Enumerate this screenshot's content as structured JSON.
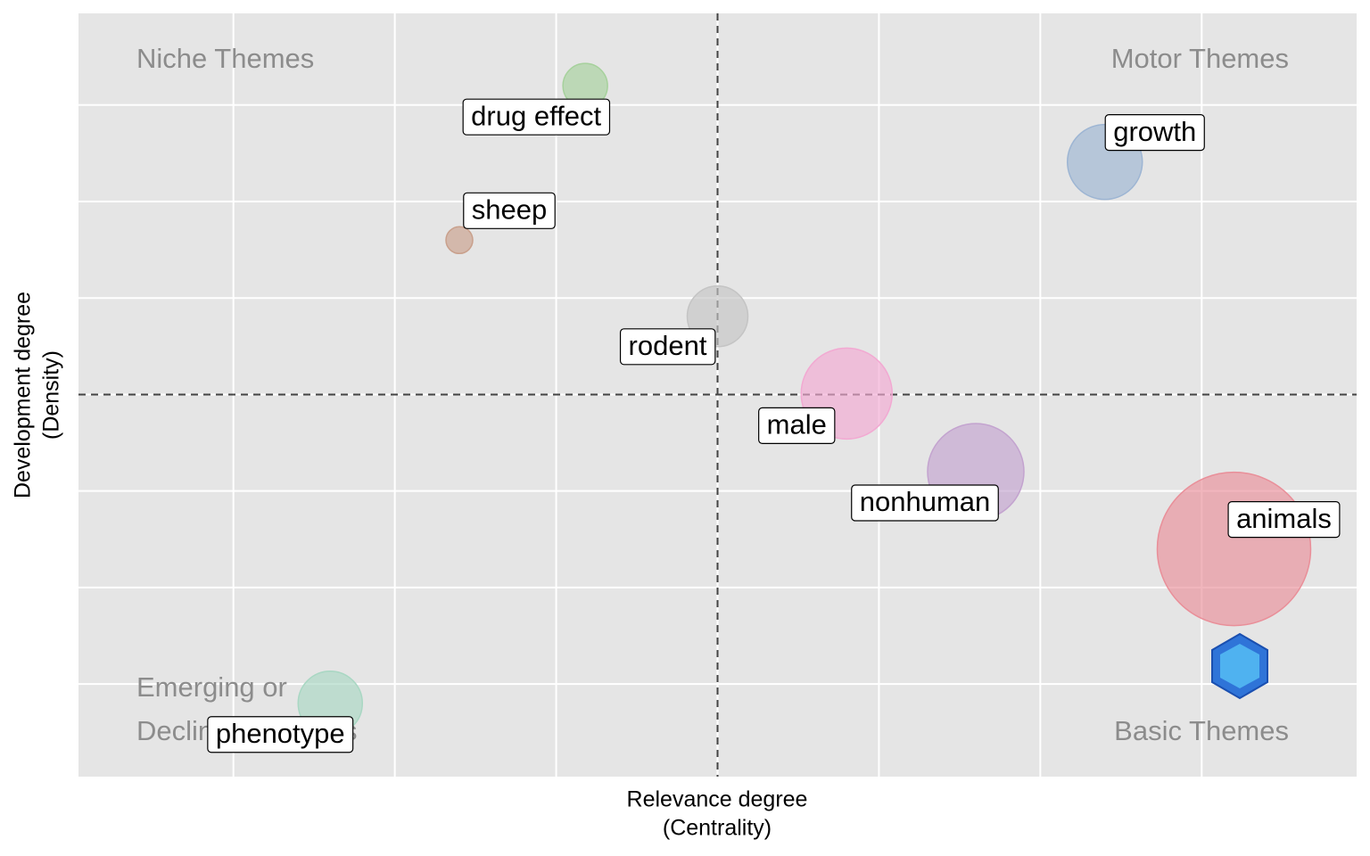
{
  "chart_data": {
    "type": "bubble",
    "xlabel": [
      "Relevance degree",
      "(Centrality)"
    ],
    "ylabel": [
      "Development degree",
      "(Density)"
    ],
    "quadrant_labels": {
      "niche": "Niche Themes",
      "motor": "Motor Themes",
      "emerging": [
        "Emerging or",
        "Declining Themes"
      ],
      "basic": "Basic Themes"
    },
    "xlim": [
      0.52,
      4.48
    ],
    "ylim": [
      0.04,
      7.95
    ],
    "xticks": [
      1,
      1.5,
      2,
      2.5,
      3,
      3.5,
      4
    ],
    "yticks": [
      1,
      2,
      3,
      4,
      5,
      6,
      7
    ],
    "xline": 2.5,
    "yline": 4,
    "grid": true,
    "series": [
      {
        "name": "drug effect",
        "color": "#a6d19c",
        "x": [
          2.09
        ],
        "values": [
          7.2
        ],
        "size": [
          25
        ]
      },
      {
        "name": "sheep",
        "color": "#c9a08c",
        "x": [
          1.7
        ],
        "values": [
          5.6
        ],
        "size": [
          15
        ]
      },
      {
        "name": "growth",
        "color": "#9db5d3",
        "x": [
          3.7
        ],
        "values": [
          6.41
        ],
        "size": [
          42
        ]
      },
      {
        "name": "rodent",
        "color": "#c4c4c4",
        "x": [
          2.5
        ],
        "values": [
          4.81
        ],
        "size": [
          34
        ]
      },
      {
        "name": "male",
        "color": "#f2a9d2",
        "x": [
          2.9
        ],
        "values": [
          4.01
        ],
        "size": [
          51
        ]
      },
      {
        "name": "nonhuman",
        "color": "#c3a3cf",
        "x": [
          3.3
        ],
        "values": [
          3.2
        ],
        "size": [
          54
        ]
      },
      {
        "name": "animals",
        "color": "#e98f99",
        "x": [
          4.1
        ],
        "values": [
          2.4
        ],
        "size": [
          86
        ]
      },
      {
        "name": "phenotype",
        "color": "#a9d7c3",
        "x": [
          1.3
        ],
        "values": [
          0.8
        ],
        "size": [
          36
        ]
      }
    ]
  }
}
